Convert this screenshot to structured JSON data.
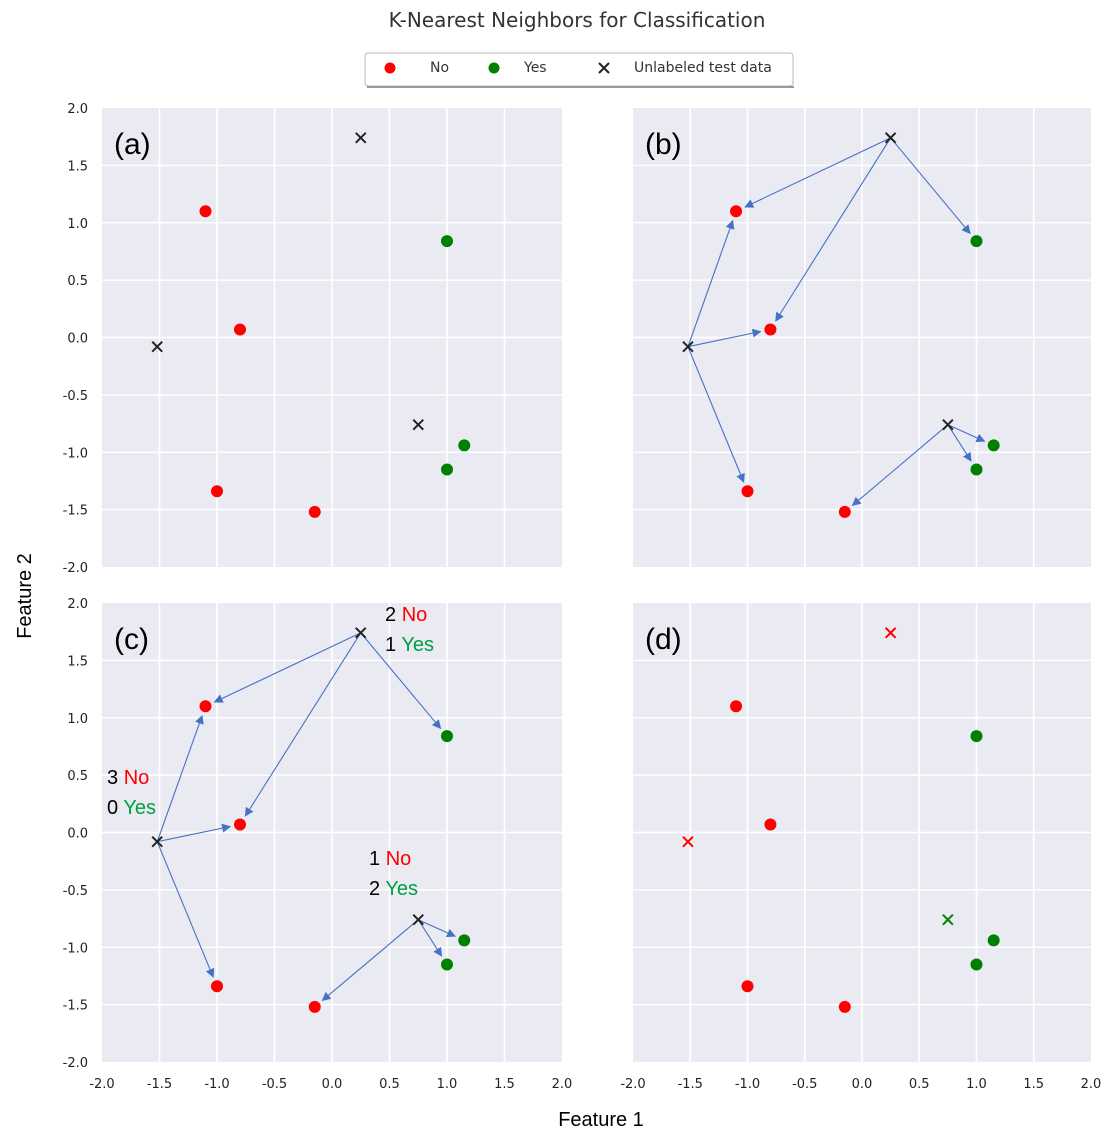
{
  "title": "K-Nearest Neighbors for Classification",
  "legend": [
    {
      "label": "No",
      "marker": "dot",
      "color": "#ff0000"
    },
    {
      "label": "Yes",
      "marker": "dot",
      "color": "#008000"
    },
    {
      "label": "Unlabeled test data",
      "marker": "x",
      "color": "#222222"
    }
  ],
  "xlabel": "Feature 1",
  "ylabel": "Feature 2",
  "colors": {
    "no": "#ff0000",
    "yes": "#008000",
    "unlabeled": "#222222",
    "arrow": "#4472c4",
    "axes_bg": "#eaeaf2",
    "grid": "#ffffff",
    "count_no": "#ff0000",
    "count_yes": "#00a040"
  },
  "chart_data": {
    "type": "scatter",
    "xlim": [
      -2.0,
      2.0
    ],
    "ylim": [
      -2.0,
      2.0
    ],
    "xticks": [
      "-2.0",
      "-1.5",
      "-1.0",
      "-0.5",
      "0.0",
      "0.5",
      "1.0",
      "1.5",
      "2.0"
    ],
    "yticks": [
      "2.0",
      "1.5",
      "1.0",
      "0.5",
      "0.0",
      "-0.5",
      "-1.0",
      "-1.5",
      "-2.0"
    ],
    "grid": true,
    "legend_position": "top-center",
    "series": [
      {
        "name": "No",
        "points": [
          [
            -1.1,
            1.1
          ],
          [
            -0.8,
            0.07
          ],
          [
            -1.0,
            -1.34
          ],
          [
            -0.15,
            -1.52
          ]
        ]
      },
      {
        "name": "Yes",
        "points": [
          [
            1.0,
            0.84
          ],
          [
            1.15,
            -0.94
          ],
          [
            1.0,
            -1.15
          ]
        ]
      },
      {
        "name": "Unlabeled test data",
        "points": [
          [
            0.25,
            1.74
          ],
          [
            -1.52,
            -0.08
          ],
          [
            0.75,
            -0.76
          ]
        ]
      }
    ],
    "panels": [
      {
        "label": "(a)",
        "arrows": false,
        "classified": false,
        "counts": []
      },
      {
        "label": "(b)",
        "arrows": true,
        "classified": false,
        "counts": []
      },
      {
        "label": "(c)",
        "arrows": true,
        "classified": false,
        "counts": [
          {
            "no_num": "2",
            "no_word": "No",
            "yes_num": "1",
            "yes_word": "Yes"
          },
          {
            "no_num": "3",
            "no_word": "No",
            "yes_num": "0",
            "yes_word": "Yes"
          },
          {
            "no_num": "1",
            "no_word": "No",
            "yes_num": "2",
            "yes_word": "Yes"
          }
        ]
      },
      {
        "label": "(d)",
        "arrows": false,
        "classified": true,
        "counts": []
      }
    ],
    "neighbors": [
      {
        "from": [
          0.25,
          1.74
        ],
        "to": [
          [
            -1.1,
            1.1
          ],
          [
            -0.8,
            0.07
          ],
          [
            1.0,
            0.84
          ]
        ],
        "prediction": "No"
      },
      {
        "from": [
          -1.52,
          -0.08
        ],
        "to": [
          [
            -1.1,
            1.1
          ],
          [
            -0.8,
            0.07
          ],
          [
            -1.0,
            -1.34
          ]
        ],
        "prediction": "No"
      },
      {
        "from": [
          0.75,
          -0.76
        ],
        "to": [
          [
            1.15,
            -0.94
          ],
          [
            1.0,
            -1.15
          ],
          [
            -0.15,
            -1.52
          ]
        ],
        "prediction": "Yes"
      }
    ]
  }
}
